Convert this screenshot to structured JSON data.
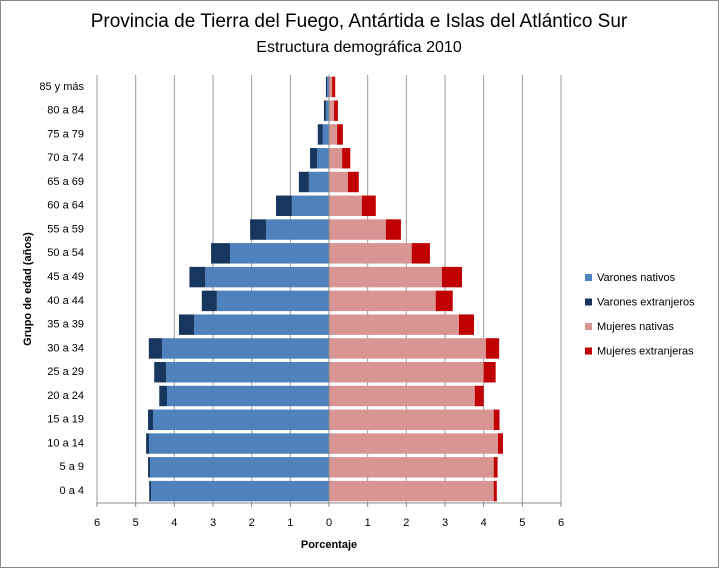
{
  "chart_data": {
    "type": "pyramid",
    "title": "Provincia de Tierra del Fuego, Antártida e Islas del Atlántico Sur",
    "subtitle": "Estructura demográfica 2010",
    "x_label": "Porcentaje",
    "y_label": "Grupo de edad (años)",
    "categories": [
      "0 a 4",
      "5 a 9",
      "10 a 14",
      "15 a 19",
      "20 a 24",
      "25 a 29",
      "30 a 34",
      "35 a 39",
      "40 a 44",
      "45 a 49",
      "50 a 54",
      "55 a 59",
      "60 a 64",
      "65 a 69",
      "70 a 74",
      "75 a 79",
      "80 a 84",
      "85 y más"
    ],
    "series": [
      {
        "name": "Varones nativos",
        "color": "#4f81bd",
        "values": [
          -4.6,
          -4.63,
          -4.65,
          -4.55,
          -4.19,
          -4.21,
          -4.32,
          -3.49,
          -2.9,
          -3.2,
          -2.56,
          -1.63,
          -0.96,
          -0.52,
          -0.31,
          -0.16,
          -0.08,
          -0.05
        ]
      },
      {
        "name": "Varones extranjeros",
        "color": "#17375e",
        "values": [
          -0.05,
          -0.05,
          -0.08,
          -0.13,
          -0.2,
          -0.31,
          -0.34,
          -0.39,
          -0.39,
          -0.41,
          -0.49,
          -0.41,
          -0.41,
          -0.26,
          -0.18,
          -0.13,
          -0.05,
          -0.03
        ]
      },
      {
        "name": "Mujeres nativas",
        "color": "#d99594",
        "values": [
          4.26,
          4.26,
          4.37,
          4.26,
          3.77,
          4.0,
          4.06,
          3.36,
          2.76,
          2.92,
          2.14,
          1.47,
          0.85,
          0.49,
          0.34,
          0.21,
          0.13,
          0.08
        ]
      },
      {
        "name": "Mujeres extranjeras",
        "color": "#c00000",
        "values": [
          0.08,
          0.1,
          0.13,
          0.15,
          0.23,
          0.31,
          0.34,
          0.39,
          0.44,
          0.52,
          0.47,
          0.39,
          0.36,
          0.28,
          0.21,
          0.15,
          0.1,
          0.08
        ]
      }
    ],
    "xlim": [
      -6,
      6
    ],
    "xticks": [
      {
        "value": -6,
        "label": "6"
      },
      {
        "value": -5,
        "label": "5"
      },
      {
        "value": -4,
        "label": "4"
      },
      {
        "value": -3,
        "label": "3"
      },
      {
        "value": -2,
        "label": "2"
      },
      {
        "value": -1,
        "label": "1"
      },
      0,
      1,
      2,
      3,
      4,
      5,
      6
    ],
    "grid": true,
    "legend": "right"
  }
}
